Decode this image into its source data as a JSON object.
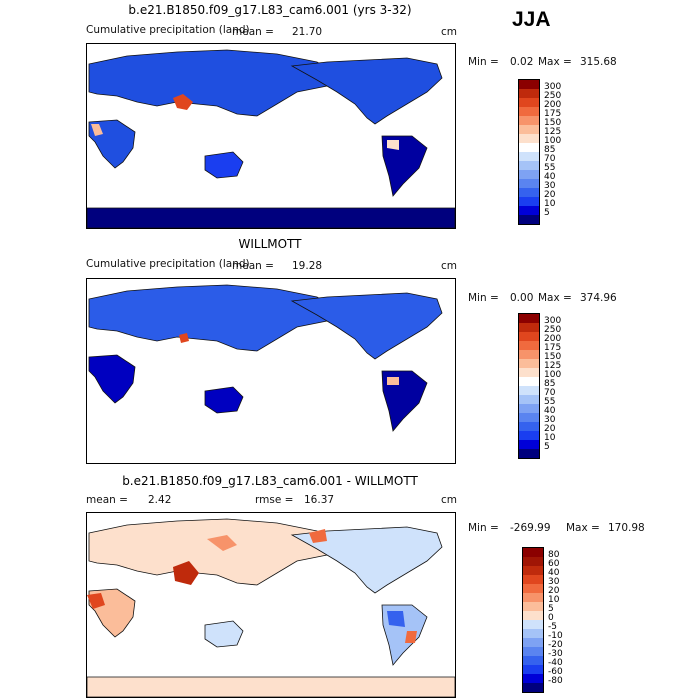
{
  "season": "JJA",
  "panels": [
    {
      "title": "b.e21.B1850.f09_g17.L83_cam6.001 (yrs 3-32)",
      "variable": "Cumulative precipitation (land)",
      "mean_label": "mean =",
      "mean_value": "21.70",
      "units": "cm",
      "min_label": "Min =",
      "min_value": "0.02",
      "max_label": "Max =",
      "max_value": "315.68",
      "scale_labels": [
        "300",
        "250",
        "200",
        "175",
        "150",
        "125",
        "100",
        "85",
        "70",
        "55",
        "40",
        "30",
        "20",
        "10",
        "5"
      ]
    },
    {
      "title": "WILLMOTT",
      "variable": "Cumulative precipitation (land)",
      "mean_label": "mean =",
      "mean_value": "19.28",
      "units": "cm",
      "min_label": "Min =",
      "min_value": "0.00",
      "max_label": "Max =",
      "max_value": "374.96",
      "scale_labels": [
        "300",
        "250",
        "200",
        "175",
        "150",
        "125",
        "100",
        "85",
        "70",
        "55",
        "40",
        "30",
        "20",
        "10",
        "5"
      ]
    },
    {
      "title": "b.e21.B1850.f09_g17.L83_cam6.001 - WILLMOTT",
      "mean_label": "mean =",
      "mean_value": "2.42",
      "rmse_label": "rmse =",
      "rmse_value": "16.37",
      "units": "cm",
      "min_label": "Min =",
      "min_value": "-269.99",
      "max_label": "Max =",
      "max_value": "170.98",
      "scale_labels": [
        "80",
        "60",
        "40",
        "30",
        "20",
        "10",
        "5",
        "0",
        "-5",
        "-10",
        "-20",
        "-30",
        "-40",
        "-60",
        "-80"
      ]
    }
  ],
  "colors": {
    "precip_scale": [
      "#00007e",
      "#0000d8",
      "#1a3ef0",
      "#3562ee",
      "#5a84f0",
      "#7ea2f3",
      "#a5c3f7",
      "#cfe2fb",
      "#ffffff",
      "#fde0cc",
      "#fbbd9a",
      "#f7936a",
      "#f06a3e",
      "#e0461e",
      "#bf2a0c",
      "#8b0000"
    ],
    "diff_scale": [
      "#00007e",
      "#0000d8",
      "#1a3ef0",
      "#3562ee",
      "#5a84f0",
      "#7ea2f3",
      "#a5c3f7",
      "#cfe2fb",
      "#fde0cc",
      "#fbbd9a",
      "#f7936a",
      "#f06a3e",
      "#e0461e",
      "#bf2a0c",
      "#a01505",
      "#8b0000"
    ]
  }
}
